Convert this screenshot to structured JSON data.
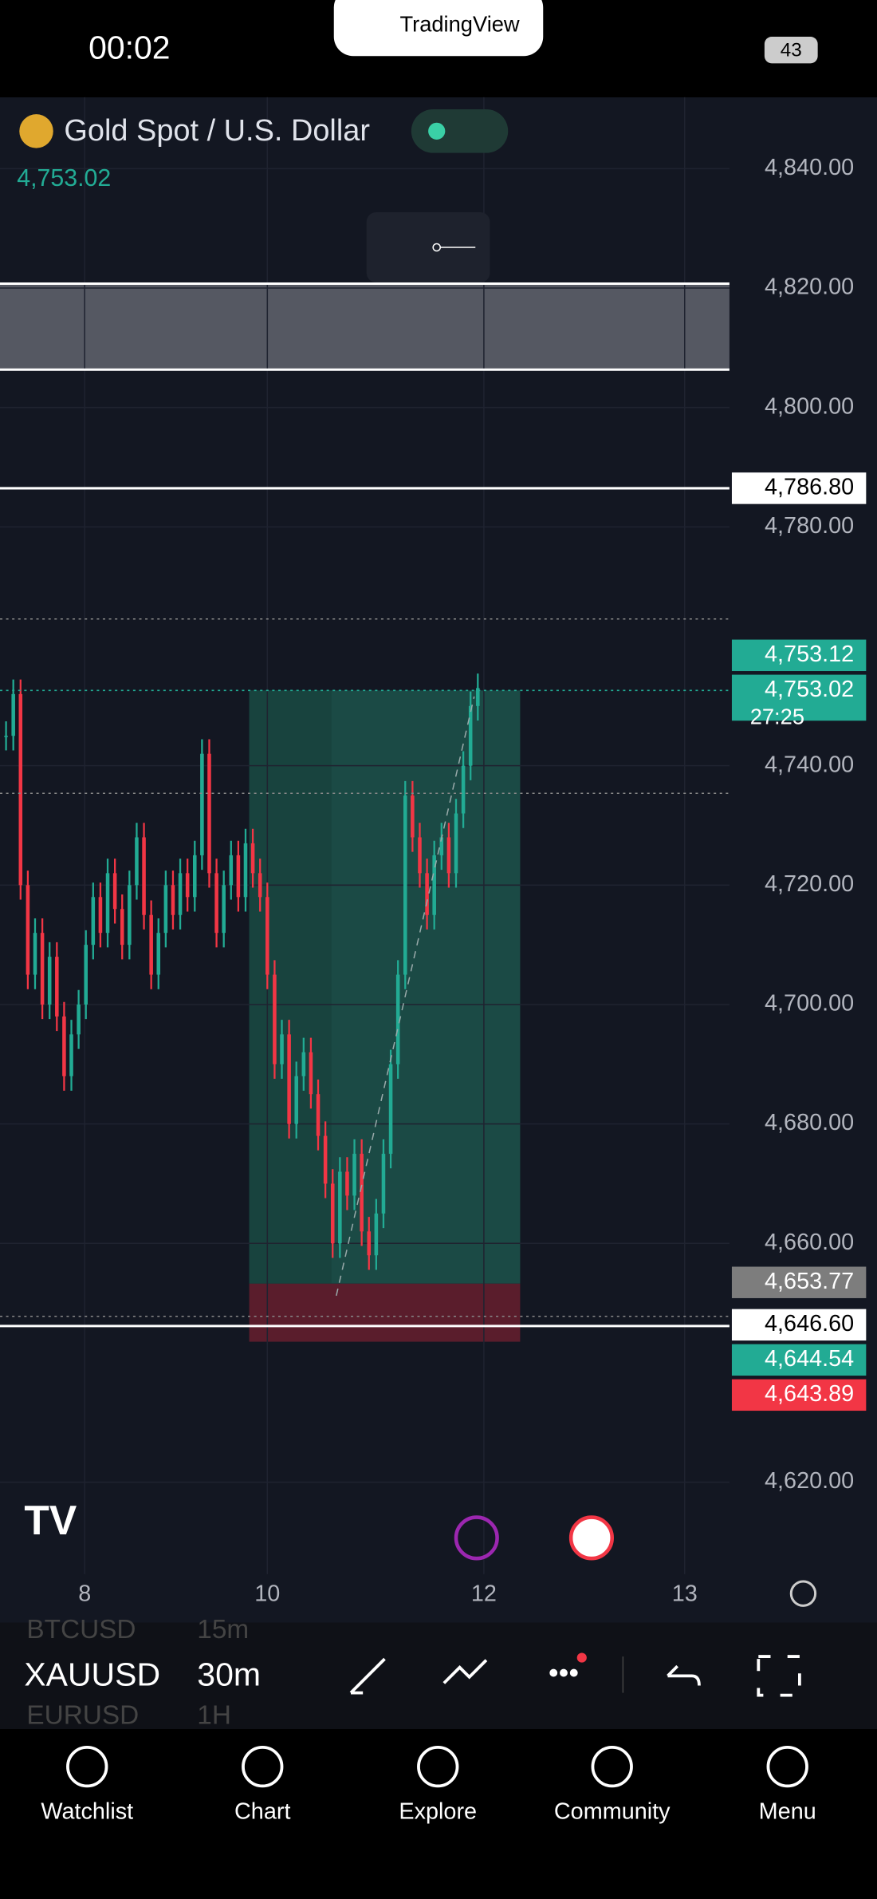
{
  "status": {
    "time": "00:02",
    "battery": "43",
    "brand": "TradingView"
  },
  "symbol": {
    "name": "Gold Spot / U.S. Dollar",
    "price": "4,753.02"
  },
  "price_axis": {
    "ticks": [
      {
        "value": 4840,
        "label": "4,840.00"
      },
      {
        "value": 4820,
        "label": "4,820.00"
      },
      {
        "value": 4800,
        "label": "4,800.00"
      },
      {
        "value": 4780,
        "label": "4,780.00"
      },
      {
        "value": 4740,
        "label": "4,740.00"
      },
      {
        "value": 4720,
        "label": "4,720.00"
      },
      {
        "value": 4700,
        "label": "4,700.00"
      },
      {
        "value": 4680,
        "label": "4,680.00"
      },
      {
        "value": 4660,
        "label": "4,660.00"
      },
      {
        "value": 4620,
        "label": "4,620.00"
      }
    ],
    "labels": [
      {
        "value": 4786.8,
        "label": "4,786.80",
        "color": "#ffffff"
      },
      {
        "value": 4753.12,
        "label": "4,753.12",
        "color": "#22ab94"
      },
      {
        "value": 4753.02,
        "label": "4,753.02",
        "color": "#22ab94"
      },
      {
        "value": 4653.77,
        "label": "4,653.77",
        "color": "#7d7d7d"
      },
      {
        "value": 4646.6,
        "label": "4,646.60",
        "color": "#ffffff"
      },
      {
        "value": 4644.54,
        "label": "4,644.54",
        "color": "#22ab94"
      },
      {
        "value": 4643.89,
        "label": "4,643.89",
        "color": "#f23645"
      }
    ],
    "countdown": "27:25"
  },
  "candles": {
    "closes": [
      4745,
      4752,
      4720,
      4705,
      4712,
      4700,
      4708,
      4698,
      4688,
      4695,
      4700,
      4710,
      4718,
      4712,
      4722,
      4716,
      4710,
      4720,
      4728,
      4715,
      4705,
      4712,
      4720,
      4715,
      4722,
      4718,
      4725,
      4742,
      4722,
      4712,
      4720,
      4725,
      4718,
      4727,
      4722,
      4718,
      4705,
      4690,
      4695,
      4680,
      4688,
      4692,
      4685,
      4678,
      4670,
      4660,
      4672,
      4668,
      4675,
      4662,
      4658,
      4665,
      4675,
      4690,
      4705,
      4735,
      4728,
      4722,
      4715,
      4725,
      4728,
      4722,
      4732,
      4740,
      4750,
      4753
    ]
  },
  "time_axis": [
    "8",
    "10",
    "12",
    "13"
  ],
  "toolbar": {
    "symbol": "XAUUSD",
    "interval": "30m",
    "prev_symbol": "BTCUSD",
    "prev_interval": "15m",
    "next_symbol": "EURUSD",
    "next_interval": "1H"
  },
  "nav": [
    "Watchlist",
    "Chart",
    "Explore",
    "Community",
    "Menu"
  ]
}
